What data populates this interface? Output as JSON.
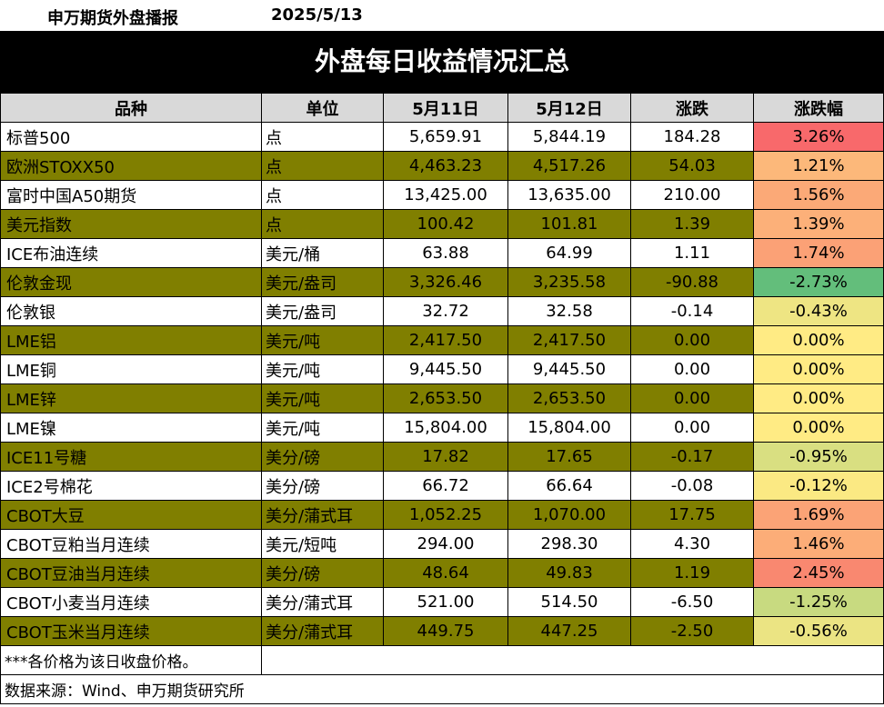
{
  "header": {
    "brand": "申万期货外盘播报",
    "date": "2025/5/13"
  },
  "banner": {
    "title": "外盘每日收益情况汇总"
  },
  "table": {
    "columns": [
      "品种",
      "单位",
      "5月11日",
      "5月12日",
      "涨跌",
      "涨跌幅"
    ],
    "rows": [
      {
        "name": "标普500",
        "unit": "点",
        "d1": "5,659.91",
        "d2": "5,844.19",
        "chg": "184.28",
        "pct": "3.26%",
        "color": "#f8696b",
        "alt": false
      },
      {
        "name": "欧洲STOXX50",
        "unit": "点",
        "d1": "4,463.23",
        "d2": "4,517.26",
        "chg": "54.03",
        "pct": "1.21%",
        "color": "#fcb87a",
        "alt": true
      },
      {
        "name": "富时中国A50期货",
        "unit": "点",
        "d1": "13,425.00",
        "d2": "13,635.00",
        "chg": "210.00",
        "pct": "1.56%",
        "color": "#fba977",
        "alt": false
      },
      {
        "name": "美元指数",
        "unit": "点",
        "d1": "100.42",
        "d2": "101.81",
        "chg": "1.39",
        "pct": "1.39%",
        "color": "#fcb079",
        "alt": true
      },
      {
        "name": "ICE布油连续",
        "unit": "美元/桶",
        "d1": "63.88",
        "d2": "64.99",
        "chg": "1.11",
        "pct": "1.74%",
        "color": "#fba176",
        "alt": false
      },
      {
        "name": "伦敦金现",
        "unit": "美元/盎司",
        "d1": "3,326.46",
        "d2": "3,235.58",
        "chg": "-90.88",
        "pct": "-2.73%",
        "color": "#63be7b",
        "alt": true
      },
      {
        "name": "伦敦银",
        "unit": "美元/盎司",
        "d1": "32.72",
        "d2": "32.58",
        "chg": "-0.14",
        "pct": "-0.43%",
        "color": "#eee583",
        "alt": false
      },
      {
        "name": "LME铝",
        "unit": "美元/吨",
        "d1": "2,417.50",
        "d2": "2,417.50",
        "chg": "0.00",
        "pct": "0.00%",
        "color": "#ffeb84",
        "alt": true
      },
      {
        "name": "LME铜",
        "unit": "美元/吨",
        "d1": "9,445.50",
        "d2": "9,445.50",
        "chg": "0.00",
        "pct": "0.00%",
        "color": "#ffeb84",
        "alt": false
      },
      {
        "name": "LME锌",
        "unit": "美元/吨",
        "d1": "2,653.50",
        "d2": "2,653.50",
        "chg": "0.00",
        "pct": "0.00%",
        "color": "#ffeb84",
        "alt": true
      },
      {
        "name": "LME镍",
        "unit": "美元/吨",
        "d1": "15,804.00",
        "d2": "15,804.00",
        "chg": "0.00",
        "pct": "0.00%",
        "color": "#ffeb84",
        "alt": false
      },
      {
        "name": "ICE11号糖",
        "unit": "美分/磅",
        "d1": "17.82",
        "d2": "17.65",
        "chg": "-0.17",
        "pct": "-0.95%",
        "color": "#d9df81",
        "alt": true
      },
      {
        "name": "ICE2号棉花",
        "unit": "美分/磅",
        "d1": "66.72",
        "d2": "66.64",
        "chg": "-0.08",
        "pct": "-0.12%",
        "color": "#fbe983",
        "alt": false
      },
      {
        "name": "CBOT大豆",
        "unit": "美分/蒲式耳",
        "d1": "1,052.25",
        "d2": "1,070.00",
        "chg": "17.75",
        "pct": "1.69%",
        "color": "#fba376",
        "alt": true
      },
      {
        "name": "CBOT豆粕当月连续",
        "unit": "美元/短吨",
        "d1": "294.00",
        "d2": "298.30",
        "chg": "4.30",
        "pct": "1.46%",
        "color": "#fcad78",
        "alt": false
      },
      {
        "name": "CBOT豆油当月连续",
        "unit": "美分/磅",
        "d1": "48.64",
        "d2": "49.83",
        "chg": "1.19",
        "pct": "2.45%",
        "color": "#f98870",
        "alt": true
      },
      {
        "name": "CBOT小麦当月连续",
        "unit": "美分/蒲式耳",
        "d1": "521.00",
        "d2": "514.50",
        "chg": "-6.50",
        "pct": "-1.25%",
        "color": "#c8da80",
        "alt": false
      },
      {
        "name": "CBOT玉米当月连续",
        "unit": "美分/蒲式耳",
        "d1": "449.75",
        "d2": "447.25",
        "chg": "-2.50",
        "pct": "-0.56%",
        "color": "#ebe483",
        "alt": true
      }
    ],
    "note": "***各价格为该日收盘价格。",
    "source": "数据来源：Wind、申万期货研究所"
  }
}
